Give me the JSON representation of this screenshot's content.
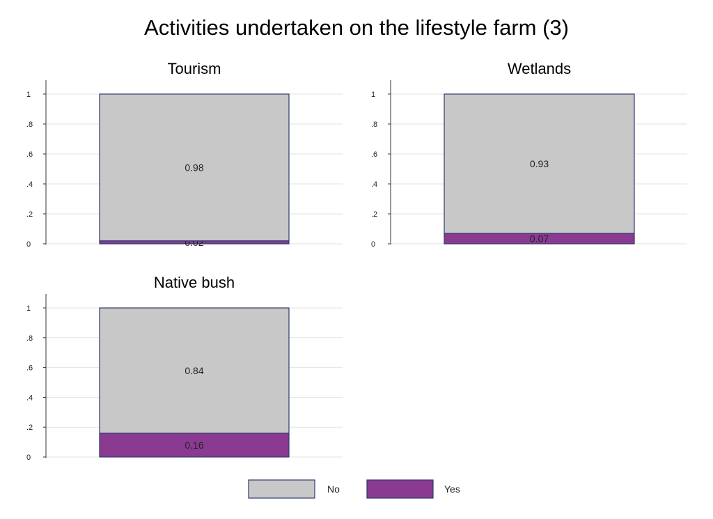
{
  "chart_data": {
    "type": "bar",
    "title": "Activities undertaken on the lifestyle farm (3)",
    "ylim": [
      0,
      1
    ],
    "yticks": [
      0,
      0.2,
      0.4,
      0.6,
      0.8,
      1
    ],
    "ytick_labels": [
      "0",
      ".2",
      ".4",
      ".6",
      ".8",
      "1"
    ],
    "grid": true,
    "stacked": true,
    "legend": {
      "placement": "bottom",
      "entries": [
        {
          "name": "No",
          "color": "#c8c8c8"
        },
        {
          "name": "Yes",
          "color": "#8b3a92"
        }
      ]
    },
    "panels": [
      {
        "title": "Tourism",
        "series": [
          {
            "name": "Yes",
            "value": 0.02,
            "label": "0.02"
          },
          {
            "name": "No",
            "value": 0.98,
            "label": "0.98"
          }
        ]
      },
      {
        "title": "Wetlands",
        "series": [
          {
            "name": "Yes",
            "value": 0.07,
            "label": "0.07"
          },
          {
            "name": "No",
            "value": 0.93,
            "label": "0.93"
          }
        ]
      },
      {
        "title": "Native bush",
        "series": [
          {
            "name": "Yes",
            "value": 0.16,
            "label": "0.16"
          },
          {
            "name": "No",
            "value": 0.84,
            "label": "0.84"
          }
        ]
      }
    ],
    "colors": {
      "no": "#c8c8c8",
      "yes": "#8b3a92",
      "outline": "#2e3a6e",
      "grid": "#e3e3e3"
    }
  }
}
